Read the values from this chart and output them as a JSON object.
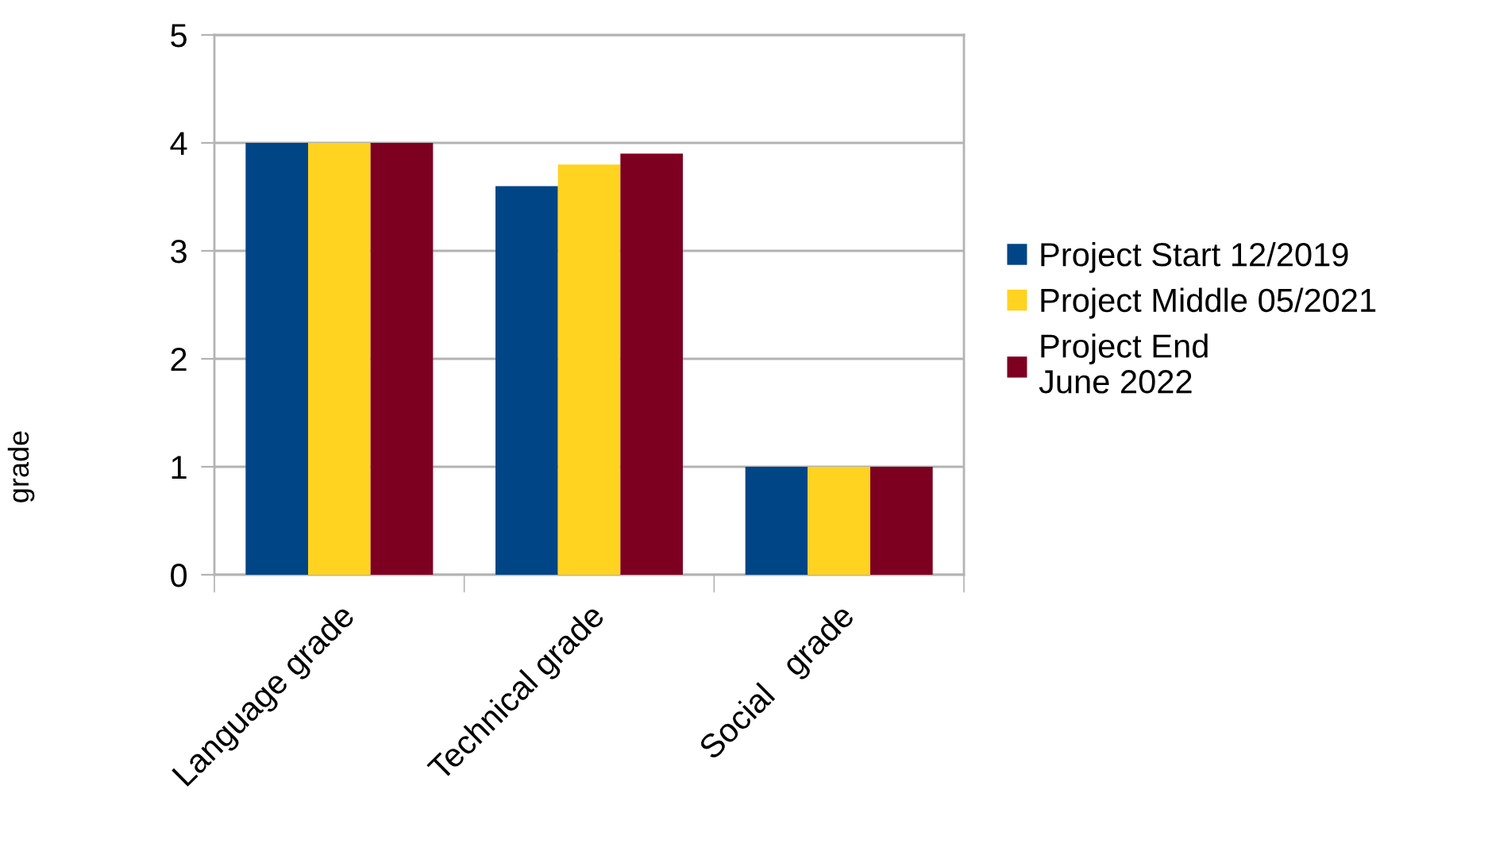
{
  "chart_data": {
    "type": "bar",
    "ylabel": "grade",
    "categories": [
      "Language grade",
      "Technical grade",
      "Social   grade"
    ],
    "series": [
      {
        "name": "Project Start 12/2019",
        "color": "#004586",
        "values": [
          4,
          3.6,
          1
        ]
      },
      {
        "name": "Project Middle 05/2021",
        "color": "#ffd320",
        "values": [
          4,
          3.8,
          1
        ]
      },
      {
        "name": "Project End\nJune 2022",
        "color": "#7e0021",
        "values": [
          4,
          3.9,
          1
        ]
      }
    ],
    "ylim": [
      0,
      5
    ],
    "yticks": [
      0,
      1,
      2,
      3,
      4,
      5
    ],
    "grid": "y",
    "legend": "right"
  }
}
